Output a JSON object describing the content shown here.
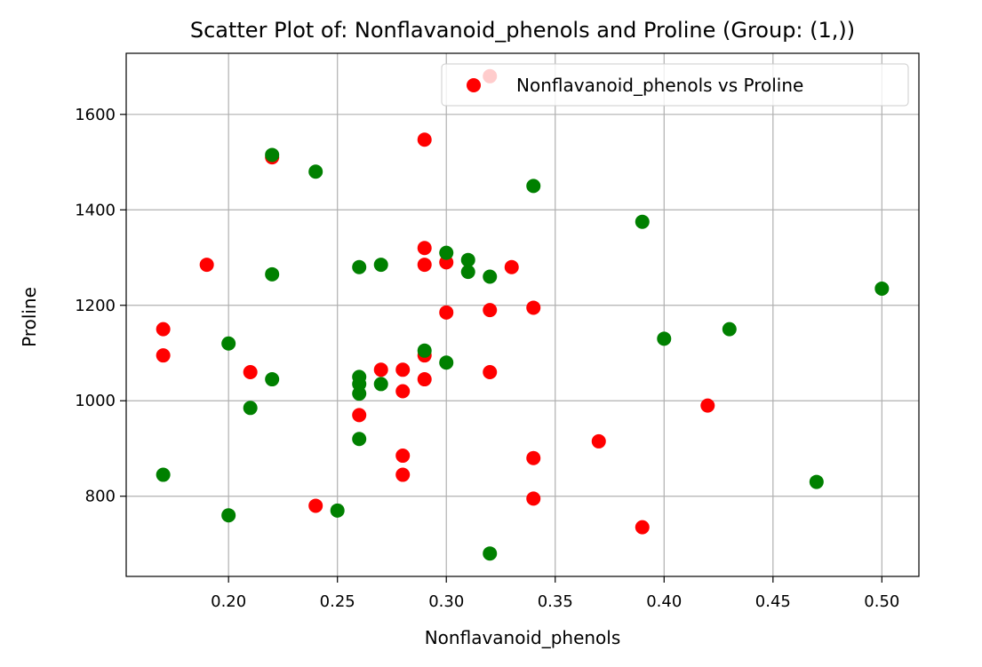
{
  "chart_data": {
    "type": "scatter",
    "title": "Scatter Plot of: Nonflavanoid_phenols and Proline (Group: (1,))",
    "xlabel": "Nonflavanoid_phenols",
    "ylabel": "Proline",
    "xlim": [
      0.153,
      0.517
    ],
    "ylim": [
      632,
      1728
    ],
    "x_ticks": [
      0.2,
      0.25,
      0.3,
      0.35,
      0.4,
      0.45,
      0.5
    ],
    "x_tick_labels": [
      "0.20",
      "0.25",
      "0.30",
      "0.35",
      "0.40",
      "0.45",
      "0.50"
    ],
    "y_ticks": [
      800,
      1000,
      1200,
      1400,
      1600
    ],
    "y_tick_labels": [
      "800",
      "1000",
      "1200",
      "1400",
      "1600"
    ],
    "grid": true,
    "legend": {
      "placement": "top-right",
      "entries": [
        "Nonflavanoid_phenols vs Proline"
      ]
    },
    "series": [
      {
        "name": "Nonflavanoid_phenols vs Proline",
        "color": "#ff0000",
        "points": [
          [
            0.32,
            1680
          ],
          [
            0.29,
            1547
          ],
          [
            0.22,
            1510
          ],
          [
            0.19,
            1285
          ],
          [
            0.29,
            1320
          ],
          [
            0.29,
            1285
          ],
          [
            0.3,
            1290
          ],
          [
            0.33,
            1280
          ],
          [
            0.3,
            1185
          ],
          [
            0.32,
            1190
          ],
          [
            0.34,
            1195
          ],
          [
            0.17,
            1150
          ],
          [
            0.17,
            1095
          ],
          [
            0.21,
            1060
          ],
          [
            0.27,
            1065
          ],
          [
            0.28,
            1065
          ],
          [
            0.29,
            1095
          ],
          [
            0.29,
            1045
          ],
          [
            0.28,
            1020
          ],
          [
            0.32,
            1060
          ],
          [
            0.26,
            970
          ],
          [
            0.42,
            990
          ],
          [
            0.37,
            915
          ],
          [
            0.28,
            885
          ],
          [
            0.34,
            880
          ],
          [
            0.28,
            845
          ],
          [
            0.24,
            780
          ],
          [
            0.34,
            795
          ],
          [
            0.39,
            735
          ]
        ]
      },
      {
        "color": "#008000",
        "points": [
          [
            0.22,
            1515
          ],
          [
            0.24,
            1480
          ],
          [
            0.34,
            1450
          ],
          [
            0.39,
            1375
          ],
          [
            0.3,
            1310
          ],
          [
            0.31,
            1295
          ],
          [
            0.27,
            1285
          ],
          [
            0.26,
            1280
          ],
          [
            0.31,
            1270
          ],
          [
            0.22,
            1265
          ],
          [
            0.32,
            1260
          ],
          [
            0.5,
            1235
          ],
          [
            0.43,
            1150
          ],
          [
            0.4,
            1130
          ],
          [
            0.2,
            1120
          ],
          [
            0.29,
            1105
          ],
          [
            0.3,
            1080
          ],
          [
            0.26,
            1050
          ],
          [
            0.22,
            1045
          ],
          [
            0.27,
            1035
          ],
          [
            0.26,
            1035
          ],
          [
            0.26,
            1015
          ],
          [
            0.21,
            985
          ],
          [
            0.26,
            920
          ],
          [
            0.17,
            845
          ],
          [
            0.47,
            830
          ],
          [
            0.25,
            770
          ],
          [
            0.2,
            760
          ],
          [
            0.32,
            680
          ]
        ]
      }
    ]
  }
}
